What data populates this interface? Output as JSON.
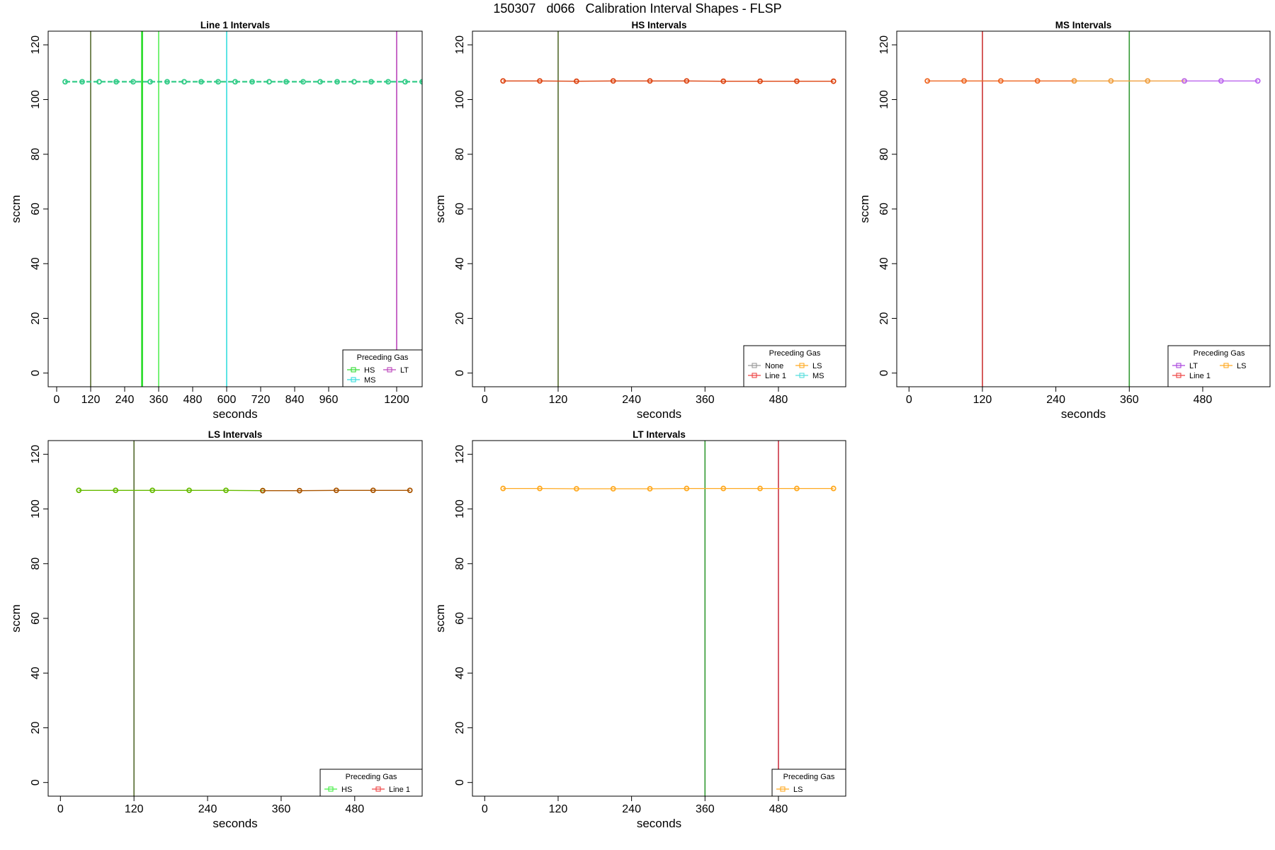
{
  "figure_title": "150307   d066   Calibration Interval Shapes - FLSP",
  "chart_data": [
    {
      "type": "line",
      "title": "Line 1 Intervals",
      "xlabel": "seconds",
      "ylabel": "sccm",
      "xlim": [
        -30,
        1290
      ],
      "ylim": [
        -5,
        125
      ],
      "xticks": [
        0,
        120,
        240,
        360,
        480,
        600,
        720,
        840,
        960,
        1200
      ],
      "yticks": [
        0,
        20,
        40,
        60,
        80,
        100,
        120
      ],
      "vlines": [
        {
          "x": 120,
          "color": "#556b2f"
        },
        {
          "x": 300,
          "color": "#33dd33"
        },
        {
          "x": 303,
          "color": "#33dd33"
        },
        {
          "x": 360,
          "color": "#55ee55"
        },
        {
          "x": 600,
          "color": "#33dddd"
        },
        {
          "x": 1200,
          "color": "#bb44bb"
        }
      ],
      "series": [
        {
          "color": "#33cc88",
          "x": [
            30,
            90,
            150,
            210,
            270,
            330,
            390,
            450,
            510,
            570,
            630,
            690,
            750,
            810,
            870,
            930,
            990,
            1050,
            1110,
            1170,
            1230,
            1290
          ],
          "y": [
            106.5,
            106.5,
            106.5,
            106.5,
            106.5,
            106.5,
            106.5,
            106.5,
            106.5,
            106.5,
            106.5,
            106.5,
            106.5,
            106.5,
            106.5,
            106.5,
            106.5,
            106.5,
            106.5,
            106.5,
            106.5,
            106.5
          ]
        }
      ],
      "legend": {
        "title": "Preceding Gas",
        "cols": 2,
        "items": [
          {
            "label": "HS",
            "color": "#33dd33"
          },
          {
            "label": "LT",
            "color": "#bb44bb"
          },
          {
            "label": "MS",
            "color": "#33dddd"
          }
        ]
      }
    },
    {
      "type": "line",
      "title": "HS Intervals",
      "xlabel": "seconds",
      "ylabel": "sccm",
      "xlim": [
        -20,
        590
      ],
      "ylim": [
        -5,
        125
      ],
      "xticks": [
        0,
        120,
        240,
        360,
        480
      ],
      "yticks": [
        0,
        20,
        40,
        60,
        80,
        100,
        120
      ],
      "vlines": [
        {
          "x": 120,
          "color": "#556b2f"
        }
      ],
      "series": [
        {
          "color": "#dd4411",
          "x": [
            30,
            90,
            150,
            210,
            270,
            330,
            390,
            450,
            510,
            570
          ],
          "y": [
            106.8,
            106.8,
            106.7,
            106.8,
            106.8,
            106.8,
            106.7,
            106.7,
            106.7,
            106.7
          ]
        }
      ],
      "legend": {
        "title": "Preceding Gas",
        "cols": 2,
        "items": [
          {
            "label": "None",
            "color": "#999999"
          },
          {
            "label": "LS",
            "color": "#ffaa22"
          },
          {
            "label": "Line 1",
            "color": "#ee4444"
          },
          {
            "label": "MS",
            "color": "#55dddd"
          }
        ]
      }
    },
    {
      "type": "line",
      "title": "MS Intervals",
      "xlabel": "seconds",
      "ylabel": "sccm",
      "xlim": [
        -20,
        590
      ],
      "ylim": [
        -5,
        125
      ],
      "xticks": [
        0,
        120,
        240,
        360,
        480
      ],
      "yticks": [
        0,
        20,
        40,
        60,
        80,
        100,
        120
      ],
      "vlines": [
        {
          "x": 120,
          "color": "#cc3333"
        },
        {
          "x": 360,
          "color": "#339933"
        }
      ],
      "series": [
        {
          "color": "#ee6622",
          "x": [
            30,
            90,
            150,
            210,
            270
          ],
          "y": [
            106.8,
            106.8,
            106.8,
            106.8,
            106.8
          ]
        },
        {
          "color": "#f0a040",
          "x": [
            270,
            330,
            390,
            450
          ],
          "y": [
            106.8,
            106.8,
            106.8,
            106.8
          ]
        },
        {
          "color": "#bb66ee",
          "x": [
            450,
            510,
            570
          ],
          "y": [
            106.8,
            106.8,
            106.8
          ]
        }
      ],
      "legend": {
        "title": "Preceding Gas",
        "cols": 2,
        "items": [
          {
            "label": "LT",
            "color": "#aa44dd"
          },
          {
            "label": "LS",
            "color": "#ffaa22"
          },
          {
            "label": "Line 1",
            "color": "#ee4444"
          }
        ]
      }
    },
    {
      "type": "line",
      "title": "LS Intervals",
      "xlabel": "seconds",
      "ylabel": "sccm",
      "xlim": [
        -20,
        590
      ],
      "ylim": [
        -5,
        125
      ],
      "xticks": [
        0,
        120,
        240,
        360,
        480
      ],
      "yticks": [
        0,
        20,
        40,
        60,
        80,
        100,
        120
      ],
      "vlines": [
        {
          "x": 120,
          "color": "#556b2f"
        }
      ],
      "series": [
        {
          "color": "#66bb00",
          "x": [
            30,
            90,
            150,
            210,
            270,
            330
          ],
          "y": [
            106.8,
            106.8,
            106.8,
            106.8,
            106.8,
            106.7
          ]
        },
        {
          "color": "#aa5500",
          "x": [
            330,
            390,
            450,
            510,
            570
          ],
          "y": [
            106.7,
            106.7,
            106.8,
            106.8,
            106.8
          ]
        }
      ],
      "legend": {
        "title": "Preceding Gas",
        "cols": 2,
        "items": [
          {
            "label": "HS",
            "color": "#44ee44"
          },
          {
            "label": "Line 1",
            "color": "#ee4444"
          }
        ]
      }
    },
    {
      "type": "line",
      "title": "LT Intervals",
      "xlabel": "seconds",
      "ylabel": "sccm",
      "xlim": [
        -20,
        590
      ],
      "ylim": [
        -5,
        125
      ],
      "xticks": [
        0,
        120,
        240,
        360,
        480
      ],
      "yticks": [
        0,
        20,
        40,
        60,
        80,
        100,
        120
      ],
      "vlines": [
        {
          "x": 360,
          "color": "#339933"
        },
        {
          "x": 480,
          "color": "#cc3344"
        }
      ],
      "series": [
        {
          "color": "#ffaa22",
          "x": [
            30,
            90,
            150,
            210,
            270,
            330,
            390,
            450,
            510,
            570
          ],
          "y": [
            107.5,
            107.5,
            107.4,
            107.4,
            107.4,
            107.5,
            107.5,
            107.5,
            107.5,
            107.5
          ]
        }
      ],
      "legend": {
        "title": "Preceding Gas",
        "cols": 1,
        "items": [
          {
            "label": "LS",
            "color": "#ffaa22"
          }
        ]
      }
    }
  ]
}
